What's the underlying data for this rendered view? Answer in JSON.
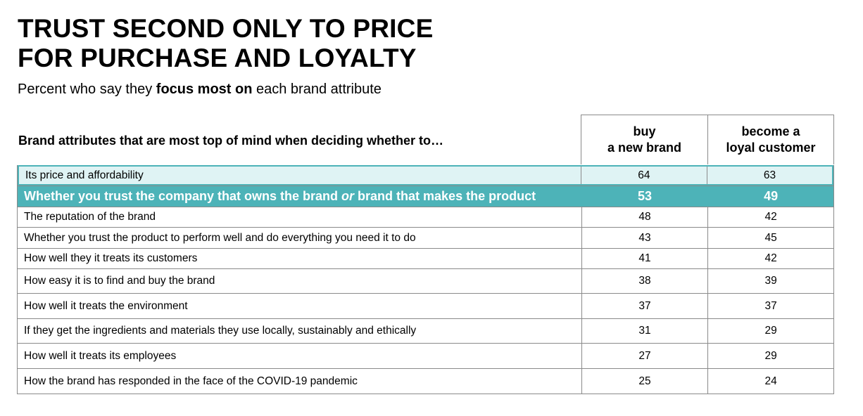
{
  "title": {
    "line1": "TRUST SECOND ONLY TO PRICE",
    "line2": "FOR PURCHASE AND LOYALTY"
  },
  "subtitle": {
    "before": "Percent who say they ",
    "bold": "focus most on",
    "after": " each brand attribute"
  },
  "table": {
    "row_header": "Brand attributes that are most top of mind when deciding whether to…",
    "col1": {
      "line1": "buy",
      "line2": "a new brand"
    },
    "col2": {
      "line1": "become a",
      "line2": "loyal customer"
    }
  },
  "colors": {
    "highlight": "#4db3b8",
    "first_row_bg": "#dff3f4"
  },
  "chart_data": {
    "type": "table",
    "title": "TRUST SECOND ONLY TO PRICE FOR PURCHASE AND LOYALTY",
    "subtitle": "Percent who say they focus most on each brand attribute",
    "columns": [
      "buy a new brand",
      "become a loyal customer"
    ],
    "rows": [
      {
        "label": "Its price and affordability",
        "values": [
          64,
          63
        ],
        "style": "first"
      },
      {
        "label_parts": [
          "Whether you trust the company that owns the brand ",
          "or",
          " brand that makes the product"
        ],
        "label": "Whether you trust the company that owns the brand or brand that makes the product",
        "values": [
          53,
          49
        ],
        "style": "highlight"
      },
      {
        "label": "The reputation of the brand",
        "values": [
          48,
          42
        ]
      },
      {
        "label": "Whether you trust the product to perform well and do everything you need it to do",
        "values": [
          43,
          45
        ]
      },
      {
        "label": "How well they it treats its customers",
        "values": [
          41,
          42
        ]
      },
      {
        "label": "How easy it is to find and buy the brand",
        "values": [
          38,
          39
        ]
      },
      {
        "label": "How well it treats the environment",
        "values": [
          37,
          37
        ]
      },
      {
        "label": "If they get the ingredients and materials they use locally, sustainably and ethically",
        "values": [
          31,
          29
        ]
      },
      {
        "label": "How well it treats its employees",
        "values": [
          27,
          29
        ]
      },
      {
        "label": "How the brand has responded in the face of the COVID-19 pandemic",
        "values": [
          25,
          24
        ]
      }
    ]
  }
}
